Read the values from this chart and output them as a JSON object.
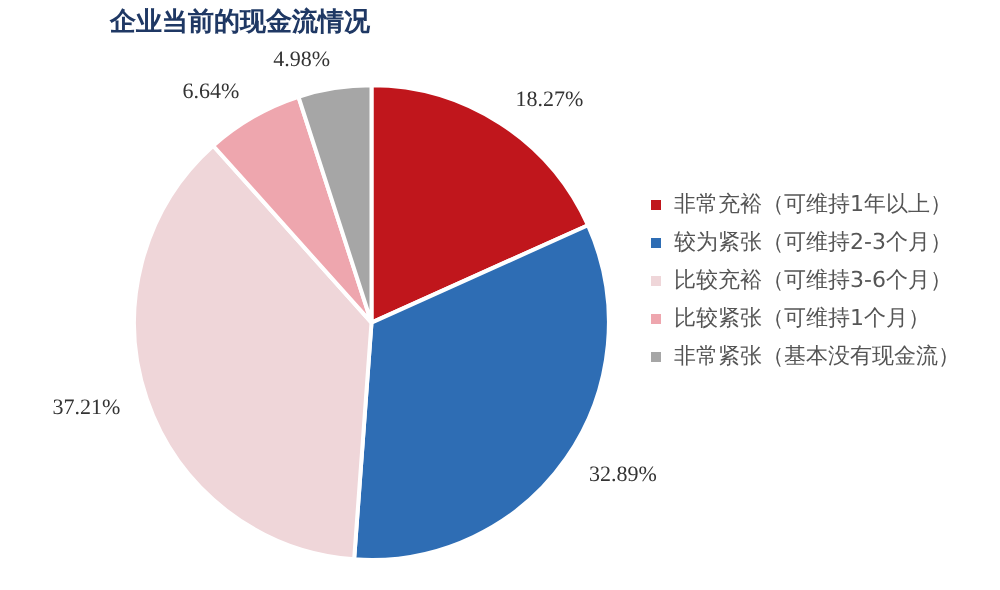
{
  "chart_data": {
    "type": "pie",
    "title": "企业当前的现金流情况",
    "categories": [
      "非常充裕（可维持1年以上）",
      "较为紧张（可维持2-3个月）",
      "比较充裕（可维持3-6个月）",
      "比较紧张（可维持1个月）",
      "非常紧张（基本没有现金流）"
    ],
    "values": [
      18.27,
      32.89,
      37.21,
      6.64,
      4.98
    ],
    "value_labels": [
      "18.27%",
      "32.89%",
      "37.21%",
      "6.64%",
      "4.98%"
    ],
    "colors": [
      "#c0161c",
      "#2e6db4",
      "#efd6d9",
      "#eea6ae",
      "#a6a6a6"
    ],
    "legend": "right"
  }
}
